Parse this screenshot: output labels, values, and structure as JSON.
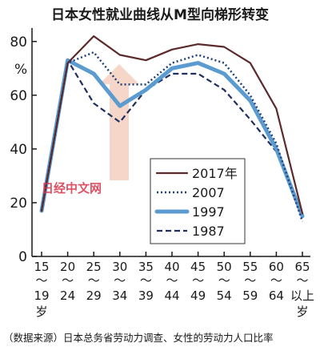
{
  "chart_data": {
    "type": "line",
    "title": "日本女性就业曲线从M型向梯形转变",
    "ylabel": "%",
    "ylim": [
      0,
      85
    ],
    "yticks": [
      0,
      20,
      40,
      60,
      80
    ],
    "categories": [
      {
        "top": "15",
        "bottom": "19",
        "suffix": "岁"
      },
      {
        "top": "20",
        "bottom": "24",
        "suffix": ""
      },
      {
        "top": "25",
        "bottom": "29",
        "suffix": ""
      },
      {
        "top": "30",
        "bottom": "34",
        "suffix": ""
      },
      {
        "top": "35",
        "bottom": "39",
        "suffix": ""
      },
      {
        "top": "40",
        "bottom": "44",
        "suffix": ""
      },
      {
        "top": "45",
        "bottom": "49",
        "suffix": ""
      },
      {
        "top": "50",
        "bottom": "54",
        "suffix": ""
      },
      {
        "top": "55",
        "bottom": "59",
        "suffix": ""
      },
      {
        "top": "60",
        "bottom": "64",
        "suffix": ""
      },
      {
        "top": "65",
        "bottom": "以上",
        "suffix": "岁"
      }
    ],
    "range_mark": "～",
    "series": [
      {
        "name": "2017年",
        "style": "solid",
        "color": "#5c2a2a",
        "values": [
          17,
          72,
          82,
          75,
          73,
          77,
          79,
          78,
          72,
          55,
          16
        ]
      },
      {
        "name": "2007",
        "style": "dotted",
        "color": "#1f3f7a",
        "values": [
          17,
          72,
          76,
          64,
          64,
          72,
          75,
          72,
          60,
          42,
          13
        ]
      },
      {
        "name": "1997",
        "style": "thick",
        "color": "#5b9bd0",
        "values": [
          17,
          73,
          68,
          56,
          62,
          70,
          72,
          68,
          58,
          40,
          15
        ]
      },
      {
        "name": "1987",
        "style": "dashed",
        "color": "#1f3060",
        "values": [
          17,
          73,
          57,
          50,
          62,
          68,
          68,
          62,
          51,
          39,
          15
        ]
      }
    ],
    "legend_position": "lower-right",
    "grid": false
  },
  "source_note": "（数据来源）日本总务省劳动力调查、女性的劳动力人口比率",
  "watermark": "日经中文网",
  "colors": {
    "axis": "#1a1a1a",
    "arrow_fill": "#f4d2c2"
  }
}
